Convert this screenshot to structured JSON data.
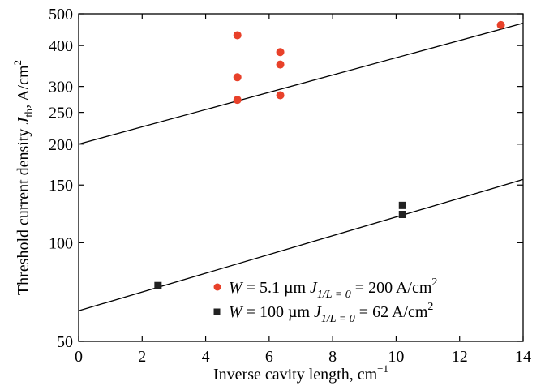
{
  "chart_data": {
    "type": "scatter",
    "xlabel": {
      "text": "Inverse cavity length, cm",
      "sup": "−1"
    },
    "ylabel": {
      "pre": "Threshold current density ",
      "var": "J",
      "sub": "th",
      "post": ", A/cm",
      "sup": "2"
    },
    "xlim": [
      0,
      14
    ],
    "ylim": [
      50,
      500
    ],
    "yscale": "log",
    "xticks": [
      0,
      2,
      4,
      6,
      8,
      10,
      12,
      14
    ],
    "xtick_labels": [
      "0",
      "2",
      "4",
      "6",
      "8",
      "10",
      "12",
      "14"
    ],
    "yticks": [
      50,
      100,
      150,
      200,
      250,
      300,
      400,
      500
    ],
    "ytick_labels": [
      "50",
      "100",
      "150",
      "200",
      "250",
      "300",
      "400",
      "500"
    ],
    "legend_position": "bottom-right",
    "series": [
      {
        "name": "W = 5.1 µm J1/L = 0 = 200 A/cm2",
        "legend": {
          "var": "W",
          "eq": " = 5.1 µm ",
          "j": "J",
          "jsub": "1/L = 0",
          "val": " = 200 A/cm",
          "sup": "2"
        },
        "marker": "circle",
        "color": "#e8412a",
        "x": [
          5.0,
          5.0,
          5.0,
          6.35,
          6.35,
          6.35,
          13.3
        ],
        "y": [
          430,
          320,
          273,
          382,
          350,
          282,
          462
        ],
        "fit": {
          "intercept": 200,
          "x1": 14,
          "y1": 468
        }
      },
      {
        "name": "W = 100 µm J1/L = 0 = 62 A/cm2",
        "legend": {
          "var": "W",
          "eq": " = 100 µm ",
          "j": "J",
          "jsub": "1/L = 0",
          "val": " = 62 A/cm",
          "sup": "2"
        },
        "marker": "square",
        "color": "#222222",
        "x": [
          2.5,
          10.2,
          10.2
        ],
        "y": [
          74,
          130,
          122
        ],
        "fit": {
          "intercept": 62,
          "x1": 14,
          "y1": 156
        }
      }
    ]
  }
}
